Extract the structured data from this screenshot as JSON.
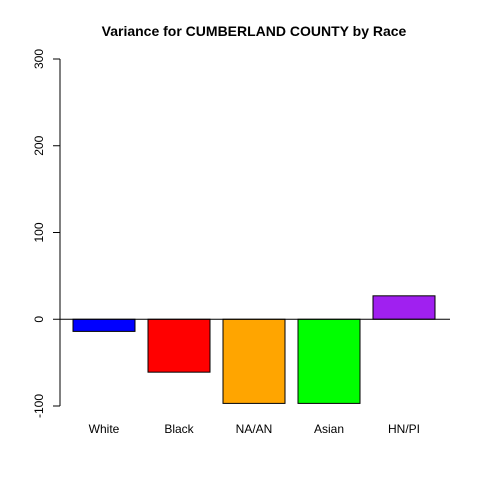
{
  "chart_data": {
    "type": "bar",
    "title": "Variance for CUMBERLAND COUNTY by Race",
    "xlabel": "",
    "ylabel": "",
    "categories": [
      "White",
      "Black",
      "NA/AN",
      "Asian",
      "HN/PI"
    ],
    "values": [
      -14,
      -61,
      -97,
      -97,
      27
    ],
    "colors": [
      "#0000ff",
      "#ff0000",
      "#ffa500",
      "#00ff00",
      "#a020f0"
    ],
    "ylim": [
      -100,
      300
    ],
    "yticks": [
      -100,
      0,
      100,
      200,
      300
    ],
    "ytick_labels": [
      "-100",
      "0",
      "100",
      "200",
      "300"
    ],
    "baseline": 0,
    "grid": false,
    "legend": "none"
  }
}
